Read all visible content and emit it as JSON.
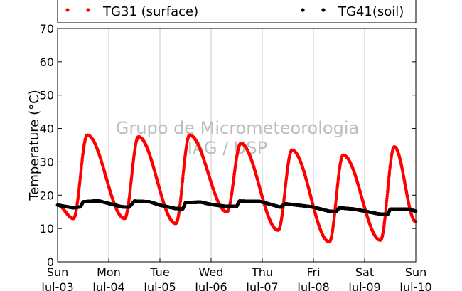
{
  "chart_data": {
    "type": "scatter",
    "title": "",
    "xlabel": "",
    "ylabel": "Temperature (°C)",
    "ylim": [
      0,
      70
    ],
    "y_ticks": [
      0,
      10,
      20,
      30,
      40,
      50,
      60,
      70
    ],
    "xlim_days": [
      0,
      7
    ],
    "x_ticks": [
      {
        "day": 0,
        "weekday": "Sun",
        "date": "Jul-03"
      },
      {
        "day": 1,
        "weekday": "Mon",
        "date": "Jul-04"
      },
      {
        "day": 2,
        "weekday": "Tue",
        "date": "Jul-05"
      },
      {
        "day": 3,
        "weekday": "Wed",
        "date": "Jul-06"
      },
      {
        "day": 4,
        "weekday": "Thu",
        "date": "Jul-07"
      },
      {
        "day": 5,
        "weekday": "Fri",
        "date": "Jul-08"
      },
      {
        "day": 6,
        "weekday": "Sat",
        "date": "Jul-09"
      },
      {
        "day": 7,
        "weekday": "Sun",
        "date": "Jul-10"
      }
    ],
    "grid": "vertical",
    "legend_position": "top",
    "watermark": [
      "Grupo de Micrometeorologia",
      "IAG / USP"
    ],
    "series": [
      {
        "name": "TG31 (surface)",
        "color": "#ff0000",
        "daily": [
          {
            "min": 13.0,
            "max": 38.0
          },
          {
            "min": 13.0,
            "max": 37.5
          },
          {
            "min": 11.5,
            "max": 38.0
          },
          {
            "min": 15.0,
            "max": 35.5
          },
          {
            "min": 9.5,
            "max": 33.5
          },
          {
            "min": 6.0,
            "max": 32.0
          },
          {
            "min": 6.5,
            "max": 34.5
          }
        ],
        "end_value": 12.0
      },
      {
        "name": "TG41(soil)",
        "color": "#000000",
        "points": [
          [
            0.0,
            17.0
          ],
          [
            0.3,
            16.2
          ],
          [
            0.45,
            16.5
          ],
          [
            0.5,
            18.0
          ],
          [
            0.8,
            18.3
          ],
          [
            1.0,
            17.5
          ],
          [
            1.25,
            16.5
          ],
          [
            1.4,
            16.4
          ],
          [
            1.5,
            18.2
          ],
          [
            1.8,
            18.0
          ],
          [
            2.0,
            17.0
          ],
          [
            2.3,
            16.0
          ],
          [
            2.45,
            15.9
          ],
          [
            2.5,
            17.8
          ],
          [
            2.8,
            17.9
          ],
          [
            3.0,
            17.2
          ],
          [
            3.3,
            16.6
          ],
          [
            3.5,
            16.6
          ],
          [
            3.55,
            18.2
          ],
          [
            3.95,
            18.1
          ],
          [
            4.1,
            17.5
          ],
          [
            4.35,
            16.4
          ],
          [
            4.45,
            17.4
          ],
          [
            4.8,
            16.8
          ],
          [
            5.0,
            16.4
          ],
          [
            5.3,
            15.2
          ],
          [
            5.45,
            15.0
          ],
          [
            5.5,
            16.2
          ],
          [
            5.8,
            15.8
          ],
          [
            6.0,
            15.2
          ],
          [
            6.3,
            14.3
          ],
          [
            6.45,
            14.2
          ],
          [
            6.5,
            15.8
          ],
          [
            6.85,
            15.8
          ],
          [
            7.0,
            15.2
          ]
        ]
      }
    ]
  }
}
